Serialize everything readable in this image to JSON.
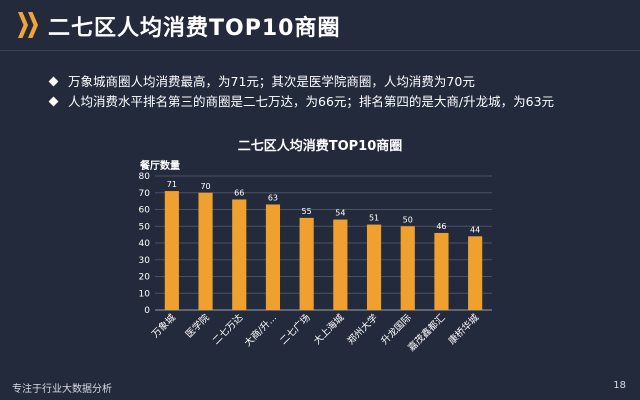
{
  "header": {
    "title": "二七区人均消费TOP10商圈"
  },
  "bullets": [
    "万象城商圈人均消费最高，为71元；其次是医学院商圈，人均消费为70元",
    "人均消费水平排名第三的商圈是二七万达，为66元；排名第四的是大商/升龙城，为63元"
  ],
  "chart_data": {
    "type": "bar",
    "title": "二七区人均消费TOP10商圈",
    "ylabel": "餐厅数量",
    "xlabel": "",
    "ylim": [
      0,
      80
    ],
    "yticks": [
      0,
      10,
      20,
      30,
      40,
      50,
      60,
      70,
      80
    ],
    "categories": [
      "万象城",
      "医学院",
      "二七万达",
      "大商/升...",
      "二七广场",
      "大上海城",
      "郑州大学",
      "升龙国际",
      "嘉茂鑫都汇",
      "康桥华城"
    ],
    "values": [
      71,
      70,
      66,
      63,
      55,
      54,
      51,
      50,
      46,
      44
    ],
    "bar_color": "#f0a02e",
    "grid": true
  },
  "footer": {
    "text": "专注于行业大数据分析",
    "page": "18"
  }
}
